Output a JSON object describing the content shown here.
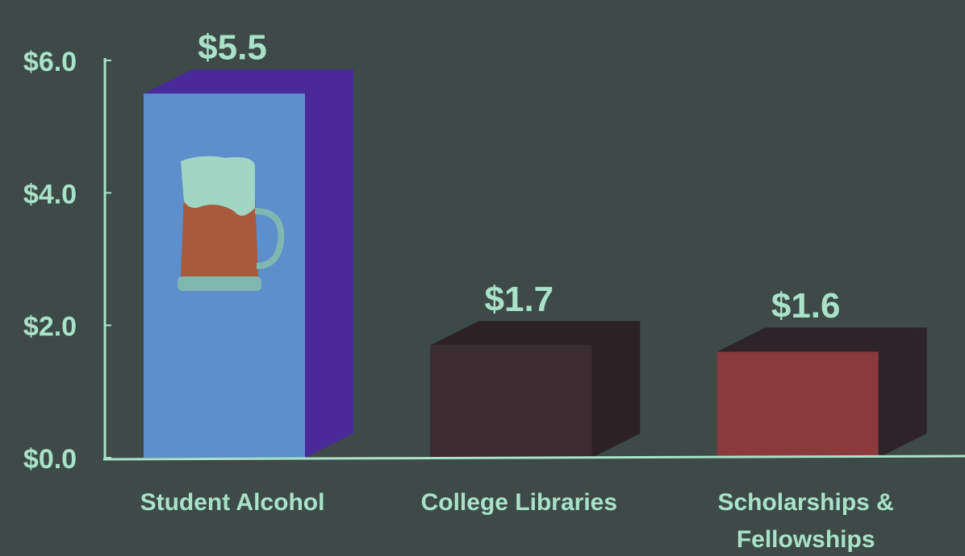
{
  "chart_data": {
    "type": "bar3d",
    "categories": [
      "Student Alcohol",
      "College Libraries",
      "Scholarships & Fellowships"
    ],
    "values": [
      5.5,
      1.7,
      1.6
    ],
    "value_labels": [
      "$5.5",
      "$1.7",
      "$1.6"
    ],
    "colors": [
      "#5c8fcb",
      "#3a2c30",
      "#8a3a3c"
    ],
    "side_colors": [
      "#4a2a9a",
      "#2c2226",
      "#2c2428"
    ],
    "ylim": [
      0,
      6
    ],
    "yticks": [
      {
        "value": 0,
        "label": "$0.0"
      },
      {
        "value": 2,
        "label": "$2.0"
      },
      {
        "value": 4,
        "label": "$4.0"
      },
      {
        "value": 6,
        "label": "$6.0"
      }
    ]
  }
}
